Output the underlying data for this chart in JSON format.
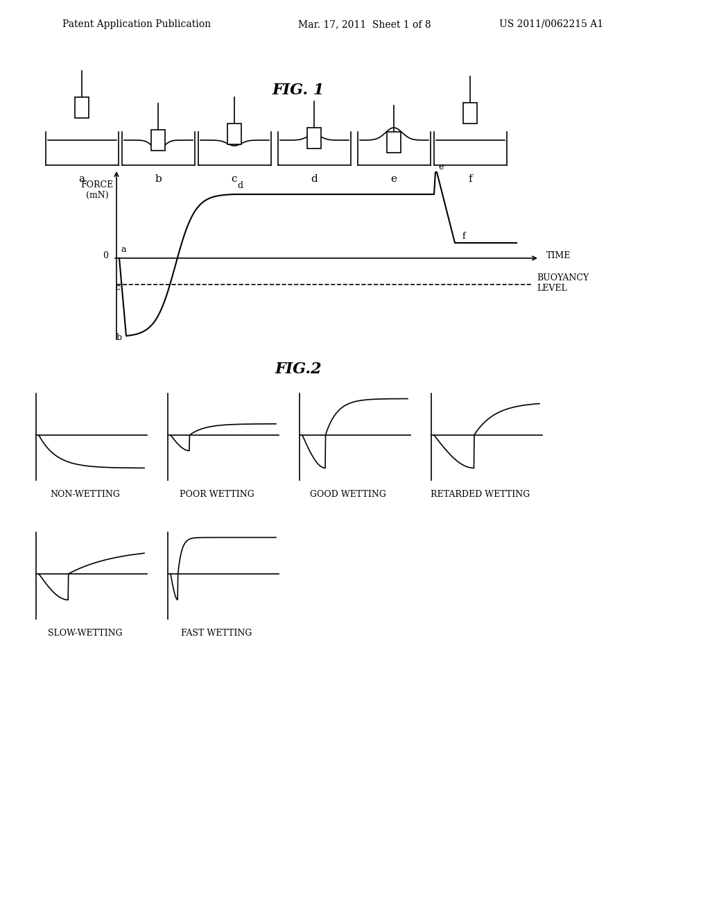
{
  "bg_color": "#ffffff",
  "header_left": "Patent Application Publication",
  "header_center": "Mar. 17, 2011  Sheet 1 of 8",
  "header_right": "US 2011/0062215 A1",
  "fig1_title": "FIG. 1",
  "fig2_title": "FIG.2",
  "force_label": "FORCE\n(mN)",
  "time_label": "TIME",
  "buoyancy_label": "BUOYANCY\nLEVEL",
  "zero_label": "0",
  "wetting_labels": [
    "NON-WETTING",
    "POOR WETTING",
    "GOOD WETTING",
    "RETARDED WETTING",
    "SLOW-WETTING",
    "FAST WETTING"
  ]
}
